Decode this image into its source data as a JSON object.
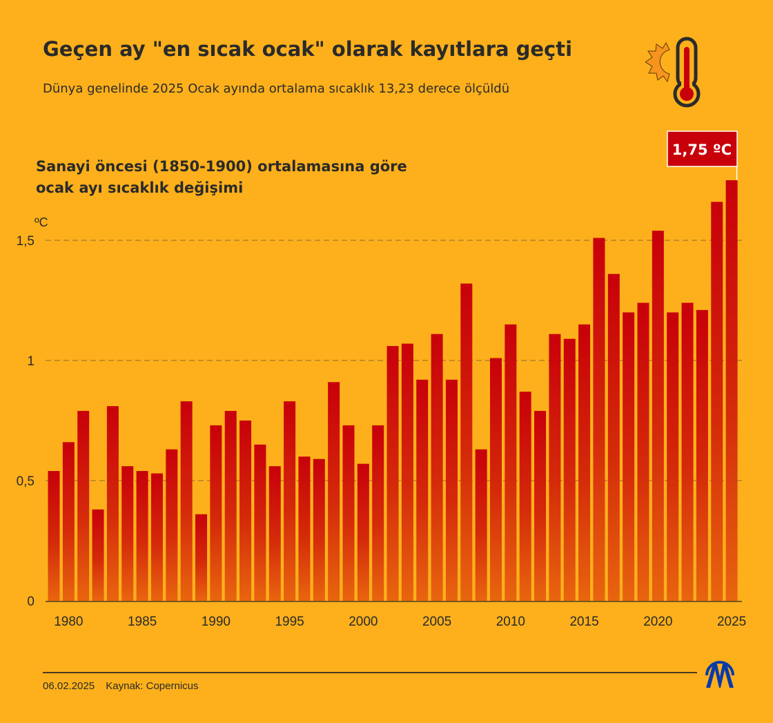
{
  "header": {
    "title": "Geçen ay \"en sıcak ocak\" olarak kayıtlara geçti",
    "subtitle": "Dünya genelinde 2025 Ocak ayında ortalama sıcaklık 13,23 derece ölçüldü"
  },
  "footer": {
    "date": "06.02.2025",
    "source": "Kaynak: Copernicus",
    "logo_text": "AA"
  },
  "colors": {
    "background": "#fdb01b",
    "bar_top": "#c8000a",
    "bar_bottom": "#e8650f",
    "callout": "#c8000a"
  },
  "chart_data": {
    "type": "bar",
    "title": "Sanayi öncesi (1850-1900) ortalamasına göre",
    "title_line2": "ocak ayı sıcaklık değişimi",
    "ylabel": "ºC",
    "ylim": [
      0,
      1.5
    ],
    "yticks": [
      {
        "v": 0,
        "label": "0"
      },
      {
        "v": 0.5,
        "label": "0,5"
      },
      {
        "v": 1,
        "label": "1"
      },
      {
        "v": 1.5,
        "label": "1,5"
      }
    ],
    "xticks": [
      1980,
      1985,
      1990,
      1995,
      2000,
      2005,
      2010,
      2015,
      2020,
      2025
    ],
    "grid": true,
    "callout": {
      "year": 2025,
      "label": "1,75 ºC"
    },
    "categories": [
      1979,
      1980,
      1981,
      1982,
      1983,
      1984,
      1985,
      1986,
      1987,
      1988,
      1989,
      1990,
      1991,
      1992,
      1993,
      1994,
      1995,
      1996,
      1997,
      1998,
      1999,
      2000,
      2001,
      2002,
      2003,
      2004,
      2005,
      2006,
      2007,
      2008,
      2009,
      2010,
      2011,
      2012,
      2013,
      2014,
      2015,
      2016,
      2017,
      2018,
      2019,
      2020,
      2021,
      2022,
      2023,
      2024,
      2025
    ],
    "values": [
      0.54,
      0.66,
      0.79,
      0.38,
      0.81,
      0.56,
      0.54,
      0.53,
      0.63,
      0.83,
      0.36,
      0.73,
      0.79,
      0.75,
      0.65,
      0.56,
      0.83,
      0.6,
      0.59,
      0.91,
      0.73,
      0.57,
      0.73,
      1.06,
      1.07,
      0.92,
      1.11,
      0.92,
      1.32,
      0.63,
      1.01,
      1.15,
      0.87,
      0.79,
      1.11,
      1.09,
      1.15,
      1.51,
      1.36,
      1.2,
      1.24,
      1.54,
      1.2,
      1.24,
      1.21,
      1.66,
      1.75
    ]
  }
}
